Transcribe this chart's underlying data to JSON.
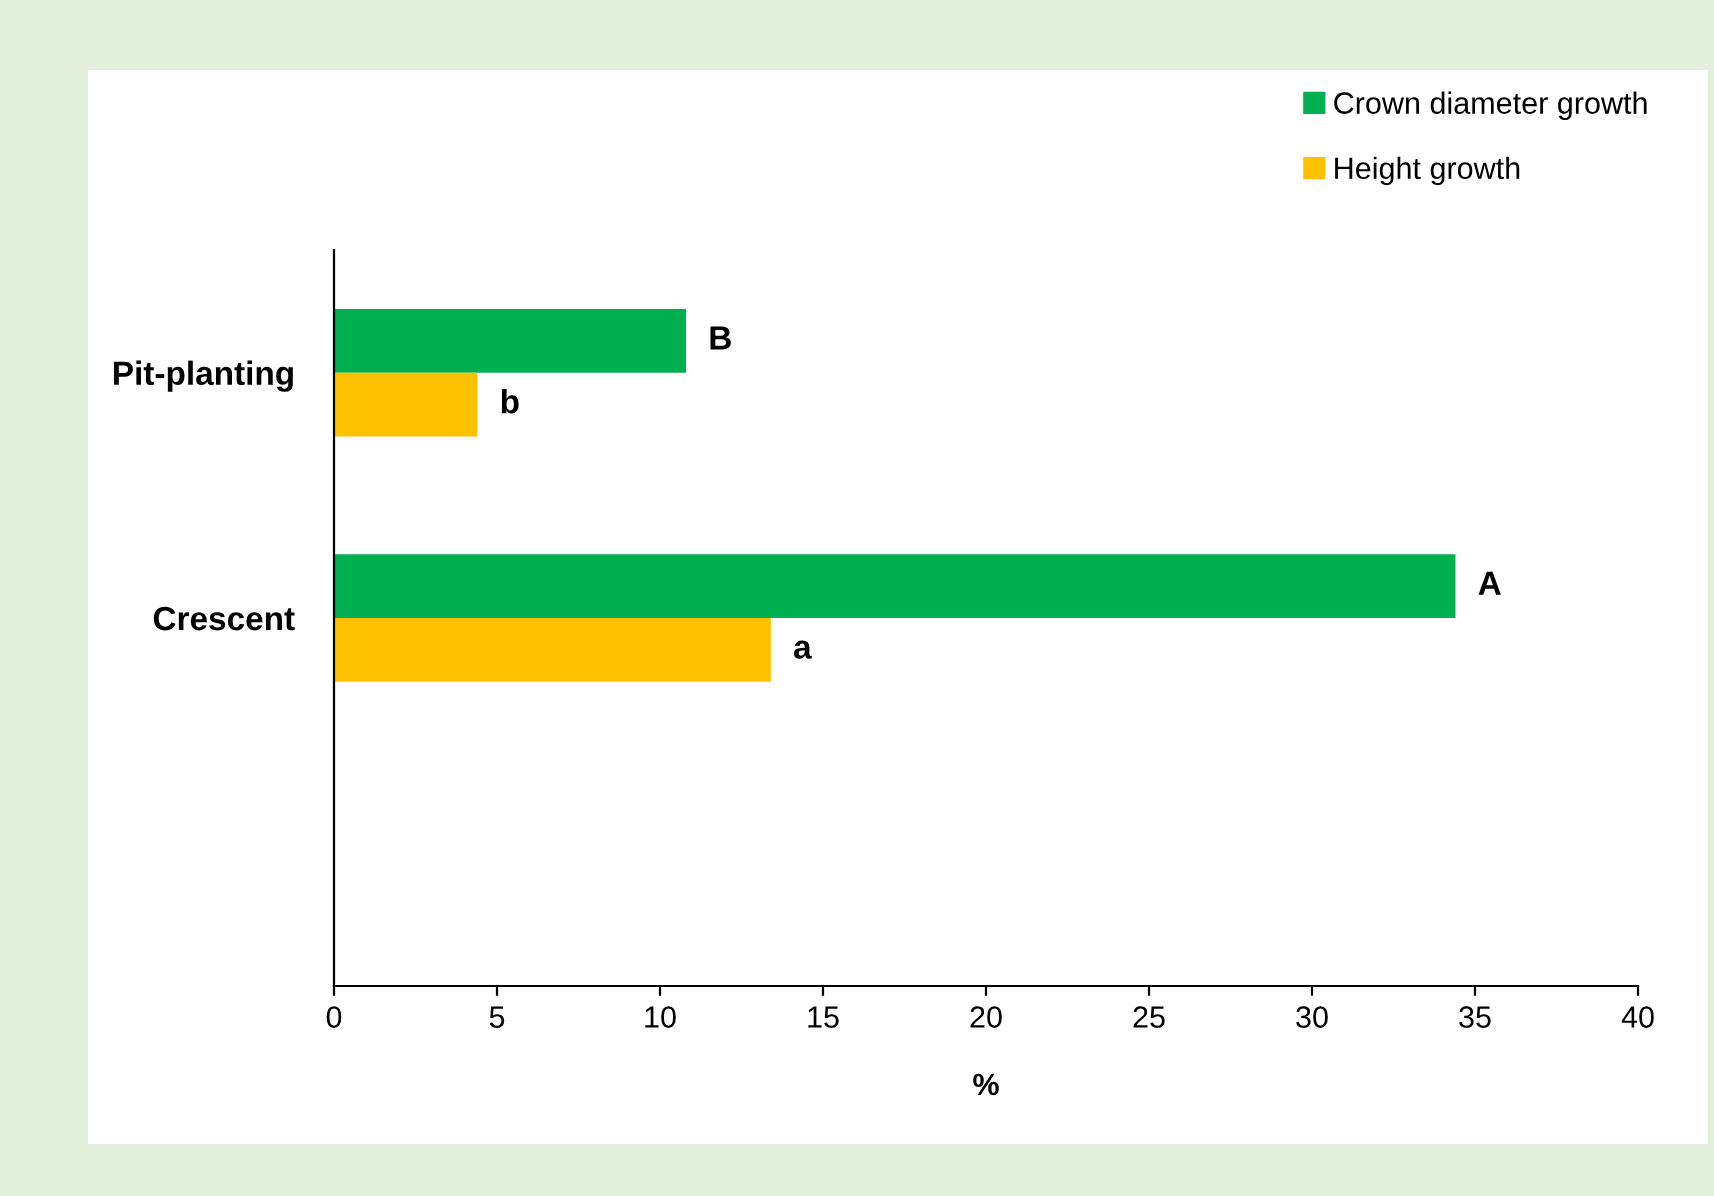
{
  "chart_data": {
    "type": "bar",
    "orientation": "horizontal",
    "xlabel": "%",
    "categories": [
      "Pit-planting",
      "Crescent",
      null
    ],
    "series": [
      {
        "name": "Crown diameter growth",
        "color": "#00b050",
        "values": [
          10.8,
          34.4,
          null
        ]
      },
      {
        "name": "Height growth",
        "color": "#ffc000",
        "values": [
          4.4,
          13.4,
          null
        ]
      }
    ],
    "xlim": [
      0,
      40
    ],
    "xticks": [
      0,
      5,
      10,
      15,
      20,
      25,
      30,
      35,
      40
    ],
    "grid": false,
    "legend": "top right",
    "annotations": [
      {
        "text": "B",
        "x": 10.8,
        "y": "Pit-planting"
      },
      {
        "text": "b",
        "x": 4.4,
        "y": "Pit-planting"
      },
      {
        "text": "A",
        "x": 34.4,
        "y": "Crescent"
      },
      {
        "text": "a",
        "x": 13.4,
        "y": "Crescent"
      }
    ]
  }
}
